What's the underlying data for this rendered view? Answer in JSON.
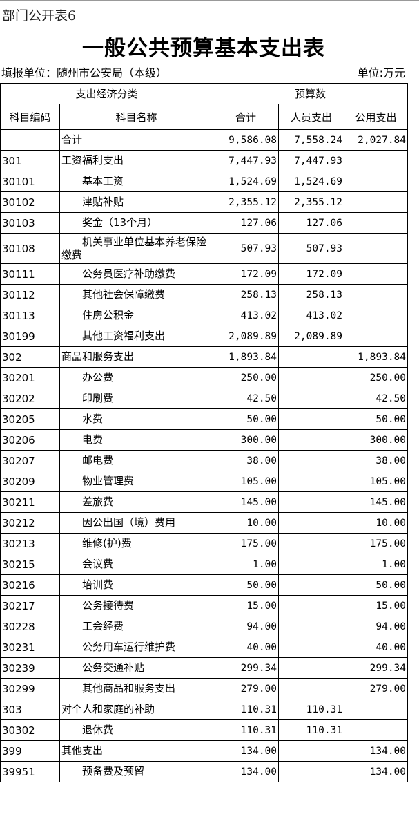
{
  "tag": "部门公开表6",
  "title": "一般公共预算基本支出表",
  "unit_left": "填报单位：随州市公安局（本级）",
  "unit_right": "单位:万元",
  "header": {
    "group1": "支出经济分类",
    "group2": "预算数",
    "code": "科目编码",
    "name": "科目名称",
    "total": "合计",
    "personnel": "人员支出",
    "public": "公用支出"
  },
  "rows": [
    {
      "code": "",
      "name": "合计",
      "total": "9,586.08",
      "personnel": "7,558.24",
      "public": "2,027.84"
    },
    {
      "code": "301",
      "name": "工资福利支出",
      "total": "7,447.93",
      "personnel": "7,447.93",
      "public": ""
    },
    {
      "code": "30101",
      "name": "　　基本工资",
      "total": "1,524.69",
      "personnel": "1,524.69",
      "public": ""
    },
    {
      "code": "30102",
      "name": "　　津贴补贴",
      "total": "2,355.12",
      "personnel": "2,355.12",
      "public": ""
    },
    {
      "code": "30103",
      "name": "　　奖金（13个月）",
      "total": "127.06",
      "personnel": "127.06",
      "public": ""
    },
    {
      "code": "30108",
      "name": "　　机关事业单位基本养老保险缴费",
      "total": "507.93",
      "personnel": "507.93",
      "public": ""
    },
    {
      "code": "30111",
      "name": "　　公务员医疗补助缴费",
      "total": "172.09",
      "personnel": "172.09",
      "public": ""
    },
    {
      "code": "30112",
      "name": "　　其他社会保障缴费",
      "total": "258.13",
      "personnel": "258.13",
      "public": ""
    },
    {
      "code": "30113",
      "name": "　　住房公积金",
      "total": "413.02",
      "personnel": "413.02",
      "public": ""
    },
    {
      "code": "30199",
      "name": "　　其他工资福利支出",
      "total": "2,089.89",
      "personnel": "2,089.89",
      "public": ""
    },
    {
      "code": "302",
      "name": "商品和服务支出",
      "total": "1,893.84",
      "personnel": "",
      "public": "1,893.84"
    },
    {
      "code": "30201",
      "name": "　　办公费",
      "total": "250.00",
      "personnel": "",
      "public": "250.00"
    },
    {
      "code": "30202",
      "name": "　　印刷费",
      "total": "42.50",
      "personnel": "",
      "public": "42.50"
    },
    {
      "code": "30205",
      "name": "　　水费",
      "total": "50.00",
      "personnel": "",
      "public": "50.00"
    },
    {
      "code": "30206",
      "name": "　　电费",
      "total": "300.00",
      "personnel": "",
      "public": "300.00"
    },
    {
      "code": "30207",
      "name": "　　邮电费",
      "total": "38.00",
      "personnel": "",
      "public": "38.00"
    },
    {
      "code": "30209",
      "name": "　　物业管理费",
      "total": "105.00",
      "personnel": "",
      "public": "105.00"
    },
    {
      "code": "30211",
      "name": "　　差旅费",
      "total": "145.00",
      "personnel": "",
      "public": "145.00"
    },
    {
      "code": "30212",
      "name": "　　因公出国（境）费用",
      "total": "10.00",
      "personnel": "",
      "public": "10.00"
    },
    {
      "code": "30213",
      "name": "　　维修(护)费",
      "total": "175.00",
      "personnel": "",
      "public": "175.00"
    },
    {
      "code": "30215",
      "name": "　　会议费",
      "total": "1.00",
      "personnel": "",
      "public": "1.00"
    },
    {
      "code": "30216",
      "name": "　　培训费",
      "total": "50.00",
      "personnel": "",
      "public": "50.00"
    },
    {
      "code": "30217",
      "name": "　　公务接待费",
      "total": "15.00",
      "personnel": "",
      "public": "15.00"
    },
    {
      "code": "30228",
      "name": "　　工会经费",
      "total": "94.00",
      "personnel": "",
      "public": "94.00"
    },
    {
      "code": "30231",
      "name": "　　公务用车运行维护费",
      "total": "40.00",
      "personnel": "",
      "public": "40.00"
    },
    {
      "code": "30239",
      "name": "　　公务交通补贴",
      "total": "299.34",
      "personnel": "",
      "public": "299.34"
    },
    {
      "code": "30299",
      "name": "　　其他商品和服务支出",
      "total": "279.00",
      "personnel": "",
      "public": "279.00"
    },
    {
      "code": "303",
      "name": "对个人和家庭的补助",
      "total": "110.31",
      "personnel": "110.31",
      "public": ""
    },
    {
      "code": "30302",
      "name": "　　退休费",
      "total": "110.31",
      "personnel": "110.31",
      "public": ""
    },
    {
      "code": "399",
      "name": "其他支出",
      "total": "134.00",
      "personnel": "",
      "public": "134.00"
    },
    {
      "code": "39951",
      "name": "　　预备费及预留",
      "total": "134.00",
      "personnel": "",
      "public": "134.00"
    }
  ]
}
